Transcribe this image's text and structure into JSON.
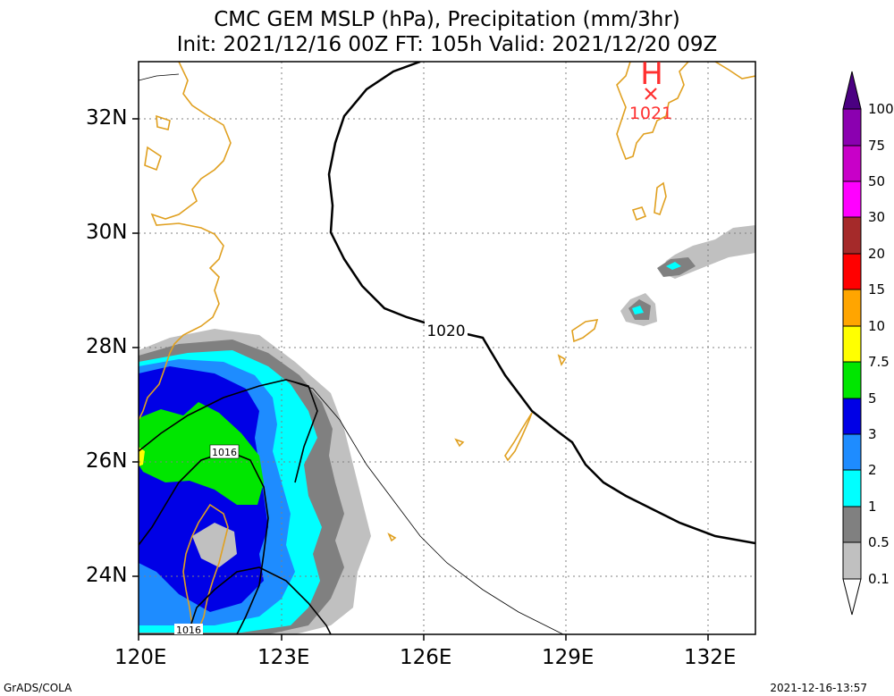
{
  "title_line1": "CMC GEM MSLP (hPa), Precipitation (mm/3hr)",
  "title_line2": "Init: 2021/12/16 00Z  FT: 105h  Valid: 2021/12/20 09Z",
  "lat_labels": [
    "32N",
    "30N",
    "28N",
    "26N",
    "24N"
  ],
  "lon_labels": [
    "120E",
    "123E",
    "126E",
    "129E",
    "132E"
  ],
  "isobar_labels": [
    "1020",
    "1016",
    "1016"
  ],
  "high_center": {
    "symbol": "H",
    "pressure": "1021"
  },
  "colorbar": {
    "levels": [
      "100",
      "75",
      "50",
      "30",
      "20",
      "15",
      "10",
      "7.5",
      "5",
      "3",
      "2",
      "1",
      "0.5",
      "0.1"
    ],
    "colors": [
      "#4b0082",
      "#8b00b0",
      "#c800c8",
      "#ff00ff",
      "#a52a2a",
      "#ff0000",
      "#ffa500",
      "#ffff00",
      "#00e600",
      "#0000e6",
      "#1e8cff",
      "#00ffff",
      "#808080",
      "#c0c0c0"
    ]
  },
  "footer_left": "GrADS/COLA",
  "footer_right": "2021-12-16-13:57"
}
